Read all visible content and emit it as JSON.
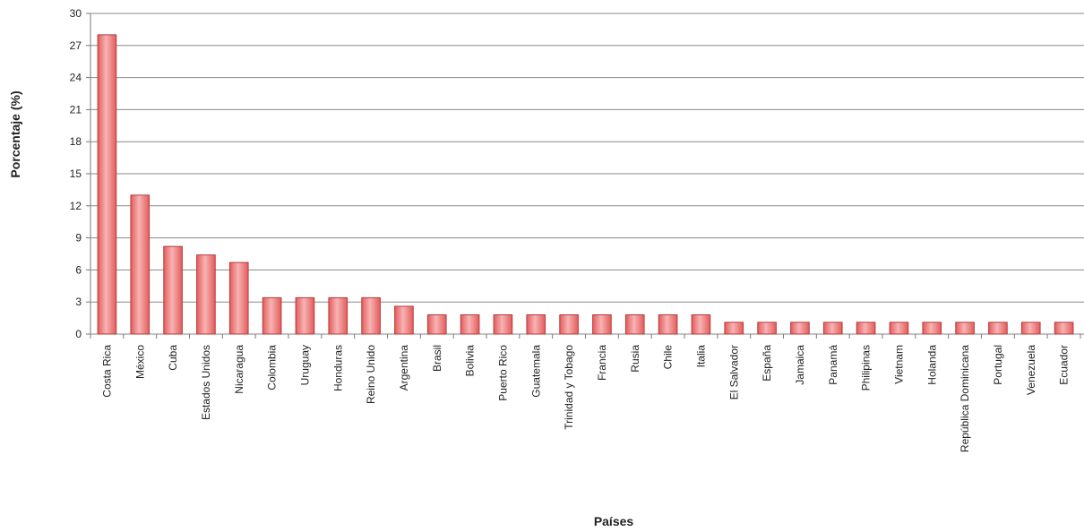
{
  "chart_data": {
    "type": "bar",
    "title": "",
    "xlabel": "Países",
    "ylabel": "Porcentaje (%)",
    "ylim": [
      0,
      30
    ],
    "yticks": [
      0,
      3,
      6,
      9,
      12,
      15,
      18,
      21,
      24,
      27,
      30
    ],
    "grid": true,
    "legend": "none",
    "categories": [
      "Costa Rica",
      "México",
      "Cuba",
      "Estados Unidos",
      "Nicaragua",
      "Colombia",
      "Uruguay",
      "Honduras",
      "Reino Unido",
      "Argentina",
      "Brasil",
      "Bolivia",
      "Puerto Rico",
      "Guatemala",
      "Trinidad y Tobago",
      "Francia",
      "Rusia",
      "Chile",
      "Italia",
      "El Salvador",
      "España",
      "Jamaica",
      "Panamá",
      "Philipinas",
      "Vietnam",
      "Holanda",
      "República Dominicana",
      "Portugal",
      "Venezuela",
      "Ecuador"
    ],
    "values": [
      28,
      13,
      8.2,
      7.4,
      6.7,
      3.4,
      3.4,
      3.4,
      3.4,
      2.6,
      1.8,
      1.8,
      1.8,
      1.8,
      1.8,
      1.8,
      1.8,
      1.8,
      1.8,
      1.1,
      1.1,
      1.1,
      1.1,
      1.1,
      1.1,
      1.1,
      1.1,
      1.1,
      1.1,
      1.1
    ],
    "colors": {
      "bar_fill_light": "#f7b3b3",
      "bar_fill_dark": "#e45c5c",
      "bar_edge": "#b83a3a",
      "grid": "#8a8a8a"
    }
  }
}
